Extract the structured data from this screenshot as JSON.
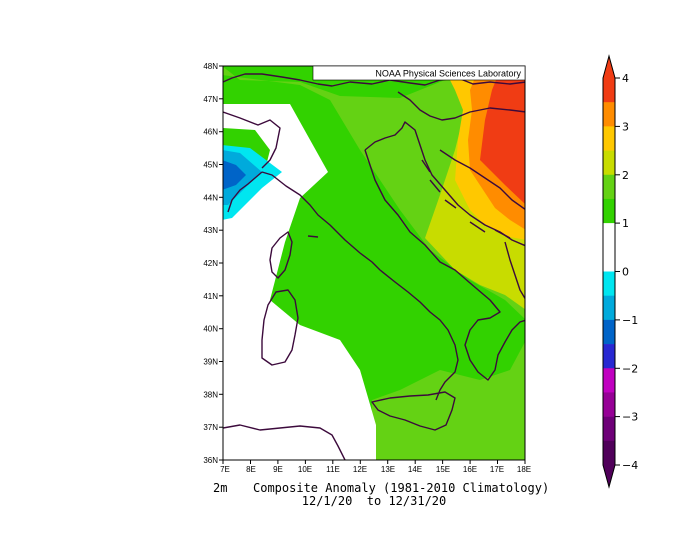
{
  "credit": "NOAA Physical Sciences Laboratory",
  "caption": {
    "variable": "2m",
    "title": "Composite Anomaly (1981-2010 Climatology)",
    "period": "12/1/20  to 12/31/20"
  },
  "axes": {
    "lon_labels": [
      "7E",
      "8E",
      "9E",
      "10E",
      "11E",
      "12E",
      "13E",
      "14E",
      "15E",
      "16E",
      "17E",
      "18E"
    ],
    "lat_labels": [
      "48N",
      "47N",
      "46N",
      "45N",
      "44N",
      "43N",
      "42N",
      "41N",
      "40N",
      "39N",
      "38N",
      "37N",
      "36N"
    ]
  },
  "colorbar": {
    "ticks": [
      "4",
      "3",
      "2",
      "1",
      "0",
      "−1",
      "−2",
      "−3",
      "−4"
    ],
    "colors_top_to_bottom": [
      "#f03c14",
      "#ff8c00",
      "#ffc800",
      "#c8dc00",
      "#64d214",
      "#32d200",
      "#ffffff",
      "#ffffff",
      "#00e6f0",
      "#00aadc",
      "#0064c8",
      "#2828d2",
      "#c000c0",
      "#960096",
      "#6e0078",
      "#50005a"
    ]
  },
  "colors": {
    "green": "#32d200",
    "light_green": "#64d214",
    "yellow_green": "#c8dc00",
    "yellow": "#ffc800",
    "orange": "#ff8c00",
    "red_orange": "#f03c14",
    "cyan": "#00e6f0",
    "light_blue": "#00aadc",
    "blue": "#0064c8",
    "coast": "#3c0a3c"
  }
}
